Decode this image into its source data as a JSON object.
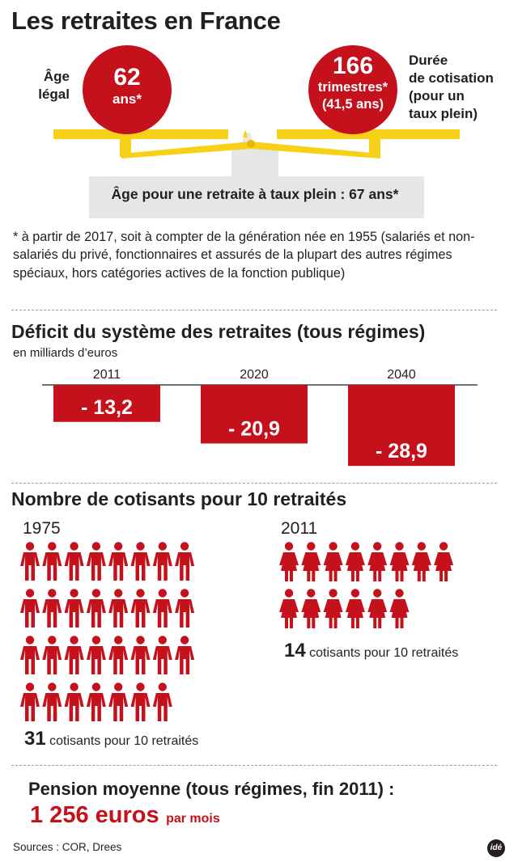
{
  "header": {
    "title": "Les retraites en France"
  },
  "balance": {
    "age_label_line1": "Âge",
    "age_label_line2": "légal",
    "age_value": "62",
    "age_unit": "ans*",
    "cotisation_value": "166",
    "cotisation_unit": "trimestres*",
    "cotisation_years": "(41,5 ans)",
    "duree_label_lines": [
      "Durée",
      "de cotisation",
      "(pour un",
      "taux plein)"
    ],
    "taux_plein_label": "Âge pour une retraite à taux plein : 67 ans*",
    "colors": {
      "red": "#c5111b",
      "yellow": "#f7d117",
      "grey": "#e6e6e6"
    }
  },
  "footnote": "* à partir de 2017, soit à compter de la génération née en 1955 (salariés et non-salariés du privé, fonctionnaires et assurés de la plupart des autres régimes spéciaux, hors catégories actives de la fonction publique)",
  "deficit": {
    "title": "Déficit du système des retraites (tous régimes)",
    "unit": "en milliards d’euros"
  },
  "cotisants": {
    "title": "Nombre de cotisants pour 10 retraités",
    "groups": [
      {
        "year": "1975",
        "count": "31",
        "text": "cotisants pour 10 retraités",
        "figures": 31,
        "per_row": 8,
        "male": true
      },
      {
        "year": "2011",
        "count": "14",
        "text": "cotisants pour 10 retraités",
        "figures": 14,
        "per_row": 8,
        "male": false
      }
    ]
  },
  "pension": {
    "title": "Pension moyenne (tous régimes, fin 2011) :",
    "amount": "1 256 euros",
    "unit": "par mois"
  },
  "sources": "Sources : COR, Drees",
  "logo": "idé",
  "chart_data": {
    "type": "bar",
    "title": "Déficit du système des retraites (tous régimes)",
    "subtitle": "en milliards d’euros",
    "categories": [
      "2011",
      "2020",
      "2040"
    ],
    "values": [
      -13.2,
      -20.9,
      -28.9
    ],
    "labels": [
      "- 13,2",
      "- 20,9",
      "- 28,9"
    ],
    "ylim": [
      -30,
      0
    ],
    "color": "#c5111b",
    "grid": false
  }
}
